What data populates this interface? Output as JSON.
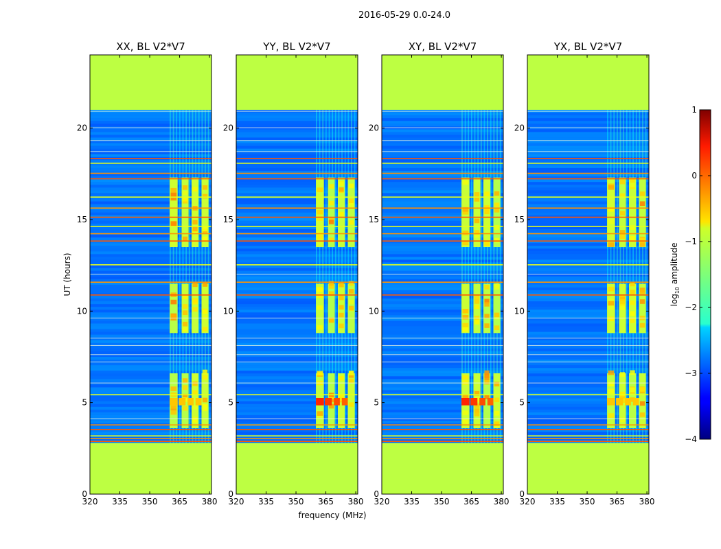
{
  "chart_data": {
    "type": "heatmap",
    "suptitle": "2016-05-29 0.0-24.0",
    "xlabel": "frequency (MHz)",
    "ylabel": "UT (hours)",
    "xlim": [
      320,
      381
    ],
    "ylim": [
      0,
      24
    ],
    "xticks": [
      320,
      335,
      350,
      365,
      380
    ],
    "yticks": [
      0,
      5,
      10,
      15,
      20
    ],
    "panels": [
      {
        "title": "XX, BL V2*V7",
        "strong_slot": 0
      },
      {
        "title": "YY, BL V2*V7",
        "strong_slot": 1
      },
      {
        "title": "XY, BL V2*V7",
        "strong_slot": 2
      },
      {
        "title": "YX, BL V2*V7",
        "strong_slot": 3
      }
    ],
    "data_gaps_hours": [
      [
        0,
        2.8
      ],
      [
        21.0,
        24.0
      ]
    ],
    "masked_fill_log10": -1.2,
    "background_log10": -2.8,
    "rfi_band_mhz": [
      360,
      380
    ],
    "rfi_blocks_hours": [
      [
        3.6,
        6.6
      ],
      [
        8.8,
        11.5
      ],
      [
        13.5,
        17.3
      ]
    ],
    "flagged_rows_hours": [
      2.85,
      3.0,
      3.15,
      3.5,
      3.75,
      5.4,
      10.85,
      11.55,
      12.5,
      13.8,
      14.2,
      14.6,
      15.1,
      15.6,
      16.2,
      17.2,
      17.5,
      18.05,
      18.3
    ],
    "colorbar": {
      "label": "log10 amplitude",
      "label_main": "log",
      "label_sub": "10",
      "label_rest": " amplitude",
      "range": [
        -4,
        1
      ],
      "ticks": [
        -4,
        -3,
        -2,
        -1,
        0,
        1
      ],
      "tick_labels": [
        "−4",
        "−3",
        "−2",
        "−1",
        "0",
        "1"
      ]
    }
  }
}
